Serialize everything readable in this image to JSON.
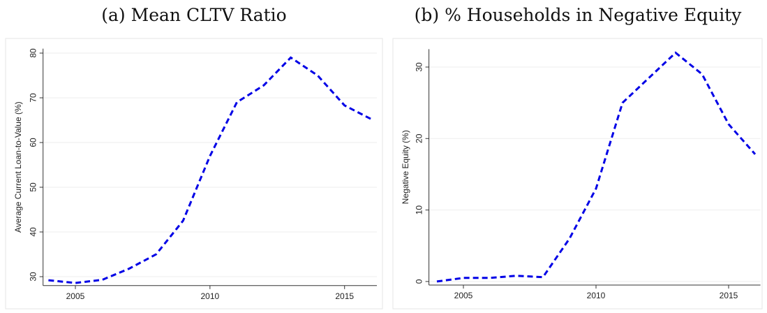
{
  "chart_data": [
    {
      "type": "line",
      "title": "(a) Mean CLTV Ratio",
      "y_label": "Average Current Loan-to-Value (%)",
      "x": [
        2004,
        2005,
        2006,
        2007,
        2008,
        2009,
        2010,
        2011,
        2012,
        2013,
        2014,
        2015,
        2016
      ],
      "values": [
        29.2,
        28.6,
        29.3,
        31.8,
        35,
        42.5,
        57,
        69,
        72.8,
        79,
        75,
        68.3,
        65.2
      ],
      "color": "#0000e6",
      "line_style": "dashed",
      "xlim": [
        2003.8,
        2016.2
      ],
      "xticks": [
        2005,
        2010,
        2015
      ],
      "ylim": [
        28,
        81
      ],
      "yticks": [
        30,
        40,
        50,
        60,
        70,
        80
      ],
      "grid": true
    },
    {
      "type": "line",
      "title": "(b) % Households in Negative Equity",
      "y_label": "Negative Equity (%)",
      "x": [
        2004,
        2005,
        2006,
        2007,
        2008,
        2009,
        2010,
        2011,
        2012,
        2013,
        2014,
        2015,
        2016
      ],
      "values": [
        0,
        0.5,
        0.5,
        0.8,
        0.6,
        6,
        13,
        25,
        28.5,
        32,
        29,
        22,
        17.8
      ],
      "color": "#0000e6",
      "line_style": "dashed",
      "xlim": [
        2003.7,
        2016.2
      ],
      "xticks": [
        2005,
        2010,
        2015
      ],
      "ylim": [
        -0.5,
        32.5
      ],
      "yticks": [
        0,
        10,
        20,
        30
      ],
      "grid": true
    }
  ]
}
